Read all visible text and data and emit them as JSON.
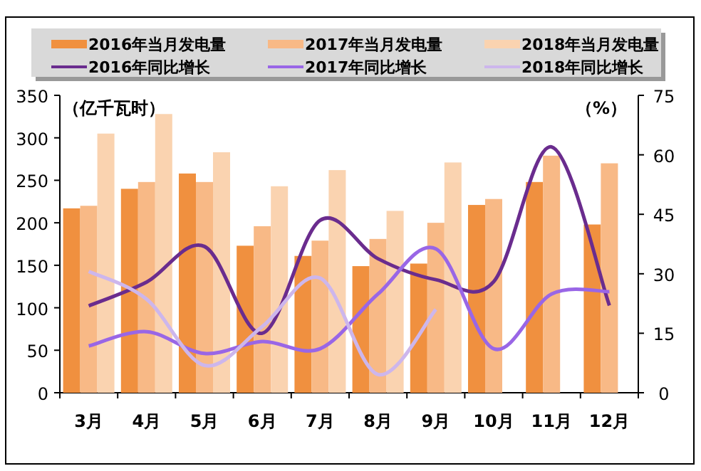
{
  "chart_data": {
    "type": "bar",
    "categories": [
      "3月",
      "4月",
      "5月",
      "6月",
      "7月",
      "8月",
      "9月",
      "10月",
      "11月",
      "12月"
    ],
    "ylabel": "（亿千瓦时）",
    "y2label": "（%）",
    "ylim": [
      0,
      350
    ],
    "yticks": [
      0,
      50,
      100,
      150,
      200,
      250,
      300,
      350
    ],
    "y2lim": [
      0,
      75
    ],
    "y2ticks": [
      0,
      15,
      30,
      45,
      60,
      75
    ],
    "legend": "top",
    "grid": false,
    "marker": "none",
    "line_style": "solid",
    "series": [
      {
        "name": "2016年当月发电量",
        "color": "#f0903f",
        "values": [
          217,
          240,
          258,
          173,
          161,
          149,
          152,
          221,
          248,
          198
        ]
      },
      {
        "name": "2017年当月发电量",
        "color": "#f8b986",
        "values": [
          220,
          248,
          248,
          196,
          179,
          181,
          200,
          228,
          279,
          270
        ]
      },
      {
        "name": "2018年当月发电量",
        "color": "#fad3b0",
        "values": [
          305,
          328,
          283,
          243,
          262,
          214,
          271,
          null,
          null,
          null
        ]
      },
      {
        "name": "2016年同比增长",
        "type": "line",
        "axis": "y2",
        "color": "#6a2c8e",
        "values": [
          21.9,
          27.9,
          36.9,
          15,
          43.5,
          33.8,
          28.5,
          28,
          62,
          22
        ]
      },
      {
        "name": "2017年同比增长",
        "type": "line",
        "axis": "y2",
        "color": "#9966e6",
        "values": [
          11.8,
          15.4,
          9.9,
          12.9,
          11.1,
          24.9,
          36.3,
          11.1,
          24.9,
          25.5
        ]
      },
      {
        "name": "2018年同比增长",
        "type": "line",
        "axis": "y2",
        "color": "#cdb6ec",
        "values": [
          30.6,
          23.6,
          6.9,
          16.7,
          28.9,
          4.6,
          21,
          null,
          null,
          null
        ]
      }
    ]
  }
}
